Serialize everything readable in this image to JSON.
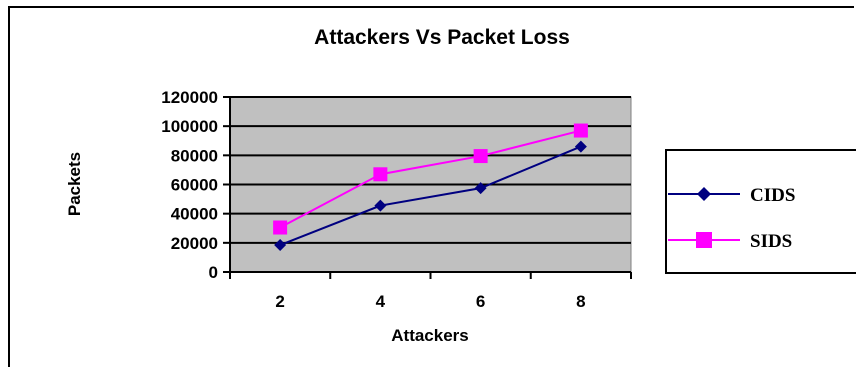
{
  "chart_data": {
    "type": "line",
    "title": "Attackers Vs Packet Loss",
    "xlabel": "Attackers",
    "ylabel": "Packets",
    "categories": [
      "2",
      "4",
      "6",
      "8"
    ],
    "y_ticks": [
      "0",
      "20000",
      "40000",
      "60000",
      "80000",
      "100000",
      "120000"
    ],
    "ylim": [
      0,
      120000
    ],
    "grid": "horizontal",
    "legend_position": "right",
    "series": [
      {
        "name": "CIDS",
        "values": [
          18500,
          45500,
          57500,
          86000
        ],
        "color": "#000080",
        "marker": "diamond"
      },
      {
        "name": "SIDS",
        "values": [
          30500,
          67000,
          79500,
          97000
        ],
        "color": "#ff00ff",
        "marker": "square"
      }
    ],
    "plot_background": "#c0c0c0"
  }
}
